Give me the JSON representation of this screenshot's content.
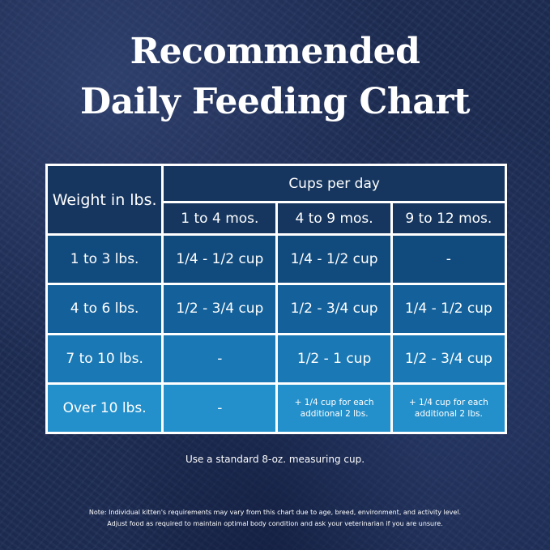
{
  "title": {
    "line1": "Recommended",
    "line2": "Daily Feeding Chart"
  },
  "table": {
    "weight_header": "Weight in lbs.",
    "cups_header": "Cups per day",
    "age_columns": [
      "1 to 4 mos.",
      "4 to 9 mos.",
      "9 to 12 mos."
    ],
    "rows": [
      {
        "weight": "1 to 3 lbs.",
        "cells": [
          "1/4 - 1/2 cup",
          "1/4 - 1/2 cup",
          "-"
        ]
      },
      {
        "weight": "4 to 6 lbs.",
        "cells": [
          "1/2 - 3/4 cup",
          "1/2 - 3/4 cup",
          "1/4 - 1/2 cup"
        ]
      },
      {
        "weight": "7 to 10 lbs.",
        "cells": [
          "-",
          "1/2 - 1 cup",
          "1/2 - 3/4 cup"
        ]
      },
      {
        "weight": "Over 10 lbs.",
        "cells": [
          "-",
          "+ 1/4 cup for each additional 2 lbs.",
          "+ 1/4 cup for each additional 2 lbs."
        ]
      }
    ]
  },
  "measure_note": "Use a standard 8-oz. measuring cup.",
  "footnote": {
    "line1": "Note: Individual kitten's requirements may vary from this chart due to age, breed, environment, and activity level.",
    "line2": "Adjust food as required to maintain optimal body condition and ask your veterinarian if you are unsure."
  },
  "colors": {
    "background": "#1e2d55",
    "header": "#16365f",
    "row1": "#114a7d",
    "row2": "#13609a",
    "row3": "#1a78b4",
    "row4": "#2490cb",
    "border": "#ffffff"
  }
}
